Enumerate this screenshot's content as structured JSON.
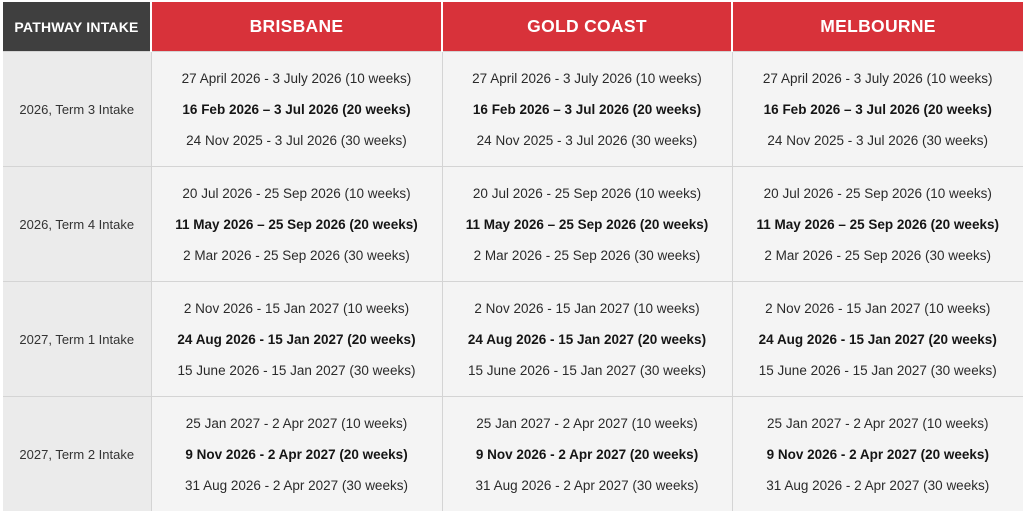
{
  "header": {
    "corner_label": "PATHWAY INTAKE",
    "cities": [
      "BRISBANE",
      "GOLD COAST",
      "MELBOURNE"
    ]
  },
  "rows": [
    {
      "intake": "2026, Term 3 Intake",
      "cells": [
        [
          "27 April 2026 - 3 July 2026 (10 weeks)",
          "16 Feb 2026 – 3 Jul 2026 (20 weeks)",
          "24 Nov 2025 - 3 Jul 2026 (30 weeks)"
        ],
        [
          "27 April 2026 - 3 July 2026 (10 weeks)",
          "16 Feb 2026 – 3 Jul 2026 (20 weeks)",
          "24 Nov 2025 - 3 Jul 2026 (30 weeks)"
        ],
        [
          "27 April 2026 - 3 July 2026 (10 weeks)",
          "16 Feb 2026 – 3 Jul 2026 (20 weeks)",
          "24 Nov 2025 - 3 Jul 2026 (30 weeks)"
        ]
      ]
    },
    {
      "intake": "2026, Term 4 Intake",
      "cells": [
        [
          "20 Jul 2026 - 25 Sep 2026 (10 weeks)",
          "11 May 2026 – 25 Sep 2026 (20 weeks)",
          "2 Mar 2026 - 25 Sep 2026 (30 weeks)"
        ],
        [
          "20 Jul 2026 - 25 Sep 2026 (10 weeks)",
          "11 May 2026 – 25 Sep 2026 (20 weeks)",
          "2 Mar 2026 - 25 Sep 2026 (30 weeks)"
        ],
        [
          "20 Jul 2026 - 25 Sep 2026 (10 weeks)",
          "11 May 2026 – 25 Sep 2026 (20 weeks)",
          "2 Mar 2026 - 25 Sep 2026 (30 weeks)"
        ]
      ]
    },
    {
      "intake": "2027, Term 1 Intake",
      "cells": [
        [
          "2 Nov 2026 - 15 Jan 2027 (10 weeks)",
          "24 Aug 2026 - 15 Jan 2027 (20 weeks)",
          "15 June 2026 - 15 Jan 2027  (30 weeks)"
        ],
        [
          "2 Nov 2026 - 15 Jan 2027 (10 weeks)",
          "24 Aug 2026 - 15 Jan 2027 (20 weeks)",
          "15 June 2026 - 15 Jan 2027  (30 weeks)"
        ],
        [
          "2 Nov 2026 - 15 Jan 2027 (10 weeks)",
          "24 Aug 2026 - 15 Jan 2027 (20 weeks)",
          "15 June 2026 - 15 Jan 2027  (30 weeks)"
        ]
      ]
    },
    {
      "intake": "2027, Term 2 Intake",
      "cells": [
        [
          "25 Jan 2027 - 2 Apr 2027 (10 weeks)",
          "9 Nov 2026 - 2 Apr 2027 (20 weeks)",
          "31 Aug 2026 - 2 Apr 2027  (30 weeks)"
        ],
        [
          "25 Jan 2027 - 2 Apr 2027 (10 weeks)",
          "9 Nov 2026 - 2 Apr 2027 (20 weeks)",
          "31 Aug 2026 - 2 Apr 2027  (30 weeks)"
        ],
        [
          "25 Jan 2027 - 2 Apr 2027 (10 weeks)",
          "9 Nov 2026 - 2 Apr 2027 (20 weeks)",
          "31 Aug 2026 - 2 Apr 2027  (30 weeks)"
        ]
      ]
    }
  ]
}
